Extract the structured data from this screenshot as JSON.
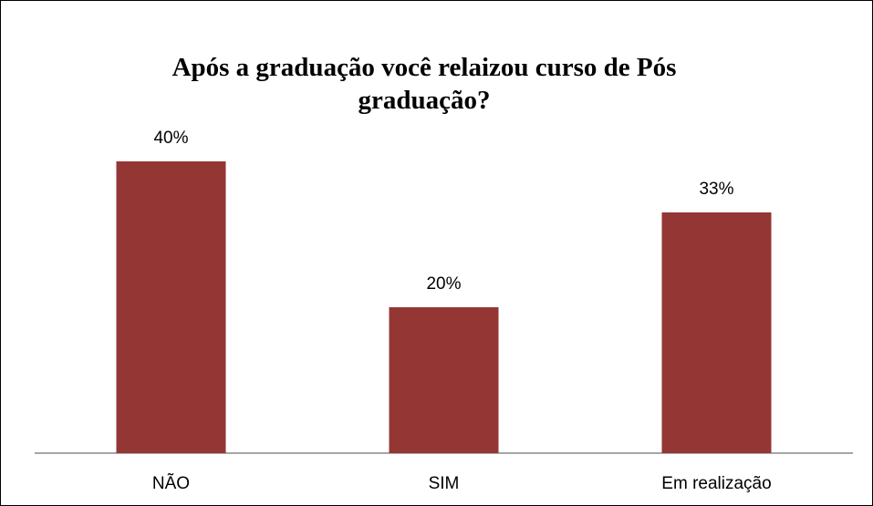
{
  "chart_data": {
    "type": "bar",
    "title": "Após a graduação você relaizou curso de Pós graduação?",
    "categories": [
      "NÃO",
      "SIM",
      "Em realização"
    ],
    "values": [
      40,
      20,
      33
    ],
    "value_labels": [
      "40%",
      "20%",
      "33%"
    ],
    "color": "#943634"
  }
}
